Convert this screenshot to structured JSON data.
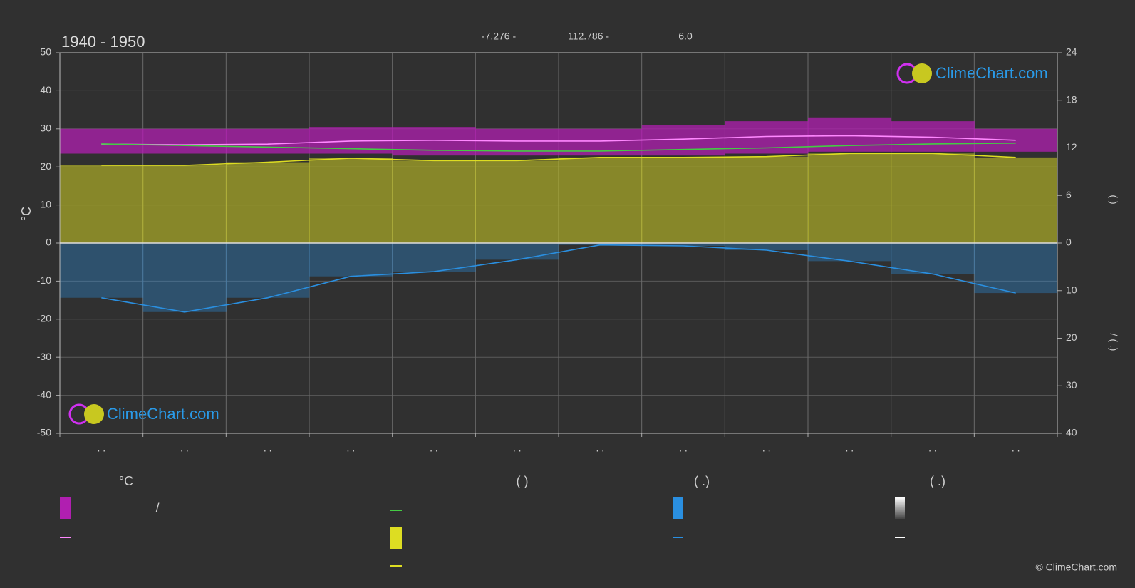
{
  "title": "1940 - 1950",
  "header": [
    "-7.276 -",
    "112.786 -",
    "6.0"
  ],
  "logo": "ClimeChart.com",
  "copyright": "© ClimeChart.com",
  "legend": {
    "headers": [
      "°C",
      "(          )",
      "(   .)",
      "(   .)"
    ],
    "texts": [
      "/"
    ]
  },
  "chart_data": {
    "type": "line",
    "categories": [
      ". .",
      ". .",
      ". .",
      ". .",
      ". .",
      ". .",
      ". .",
      ". .",
      ". .",
      ". .",
      ". .",
      ". ."
    ],
    "ylabel": "°C",
    "ylim": [
      -50,
      50
    ],
    "yticks": [
      -50,
      -40,
      -30,
      -20,
      -10,
      0,
      10,
      20,
      30,
      40,
      50
    ],
    "y2label": "(   )",
    "y2lim": [
      0,
      24
    ],
    "y2ticks": [
      0,
      6,
      12,
      18,
      24
    ],
    "y3label": "/   (  .)",
    "y3lim": [
      0,
      40
    ],
    "y3ticks": [
      10,
      20,
      30,
      40
    ],
    "grid": true,
    "series": [
      {
        "type": "band",
        "color": "#b01fb0",
        "upper": [
          30,
          30,
          30,
          30.5,
          30.5,
          30,
          30,
          31,
          32,
          33,
          32,
          30
        ],
        "lower": [
          23.5,
          23.5,
          23.5,
          23.5,
          23,
          23,
          23,
          23,
          23.5,
          24,
          24,
          24
        ]
      },
      {
        "type": "line",
        "color": "#ff88ff",
        "values": [
          26,
          25.8,
          26,
          26.8,
          27,
          26.8,
          26.8,
          27.3,
          28,
          28.2,
          27.8,
          27
        ]
      },
      {
        "type": "line",
        "color": "#44cc44",
        "axis": "y2",
        "values": [
          12.5,
          12.3,
          12.1,
          11.9,
          11.7,
          11.6,
          11.6,
          11.8,
          12.0,
          12.3,
          12.5,
          12.6
        ]
      },
      {
        "type": "area",
        "color": "#dddd22",
        "axis": "y2",
        "values": [
          9.8,
          9.8,
          10.2,
          10.7,
          10.4,
          10.4,
          10.8,
          10.8,
          10.9,
          11.3,
          11.3,
          10.8
        ]
      },
      {
        "type": "area",
        "color": "#2a8fe0",
        "axis": "y3",
        "values": [
          11.5,
          14.5,
          11.5,
          7,
          6,
          3.5,
          0.4,
          0.6,
          1.5,
          3.8,
          6.5,
          10.5
        ]
      }
    ]
  }
}
